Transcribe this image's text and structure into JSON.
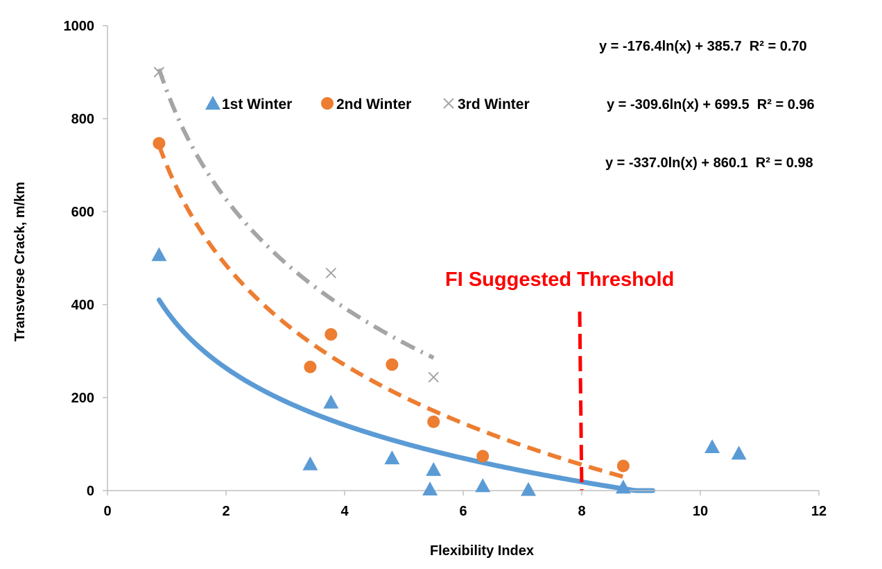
{
  "chart_data": {
    "type": "scatter",
    "xlabel": "Flexibility Index",
    "ylabel": "Transverse Crack, m/km",
    "xlim": [
      0,
      12
    ],
    "ylim": [
      0,
      1000
    ],
    "x_ticks": [
      0,
      2,
      4,
      6,
      8,
      10,
      12
    ],
    "y_ticks": [
      0,
      200,
      400,
      600,
      800,
      1000
    ],
    "grid": false,
    "legend_position": "top-center",
    "series": [
      {
        "name": "1st Winter",
        "marker": "triangle",
        "color": "#5b9bd5",
        "points": [
          {
            "x": 0.87,
            "y": 507
          },
          {
            "x": 3.42,
            "y": 57
          },
          {
            "x": 3.77,
            "y": 190
          },
          {
            "x": 4.8,
            "y": 70
          },
          {
            "x": 5.44,
            "y": 3
          },
          {
            "x": 5.5,
            "y": 45
          },
          {
            "x": 6.33,
            "y": 10
          },
          {
            "x": 7.1,
            "y": 2
          },
          {
            "x": 8.7,
            "y": 7
          },
          {
            "x": 10.2,
            "y": 94
          },
          {
            "x": 10.65,
            "y": 80
          }
        ],
        "trendline": {
          "type": "log",
          "a": -176.4,
          "b": 385.7,
          "x_range": [
            0.87,
            9.2
          ],
          "style": "solid"
        }
      },
      {
        "name": "2nd Winter",
        "marker": "circle",
        "color": "#ed7d31",
        "points": [
          {
            "x": 0.87,
            "y": 747
          },
          {
            "x": 3.42,
            "y": 266
          },
          {
            "x": 3.77,
            "y": 336
          },
          {
            "x": 4.8,
            "y": 271
          },
          {
            "x": 5.5,
            "y": 148
          },
          {
            "x": 6.33,
            "y": 74
          },
          {
            "x": 8.7,
            "y": 53
          }
        ],
        "trendline": {
          "type": "log",
          "a": -309.6,
          "b": 699.5,
          "x_range": [
            0.87,
            8.7
          ],
          "style": "dashed"
        }
      },
      {
        "name": "3rd Winter",
        "marker": "x",
        "color": "#a5a5a5",
        "points": [
          {
            "x": 0.87,
            "y": 900
          },
          {
            "x": 3.77,
            "y": 468
          },
          {
            "x": 5.5,
            "y": 244
          }
        ],
        "trendline": {
          "type": "log",
          "a": -337.0,
          "b": 860.1,
          "x_range": [
            0.87,
            5.5
          ],
          "style": "dash-dot"
        }
      }
    ],
    "equations": [
      "y = -176.4ln(x) + 385.7  R² = 0.70",
      "y = -309.6ln(x) + 699.5  R² = 0.96",
      "y = -337.0ln(x) + 860.1  R² = 0.98"
    ],
    "threshold": {
      "x": 8,
      "y_top": 385,
      "label": "FI Suggested Threshold",
      "color": "#ff0000"
    }
  }
}
